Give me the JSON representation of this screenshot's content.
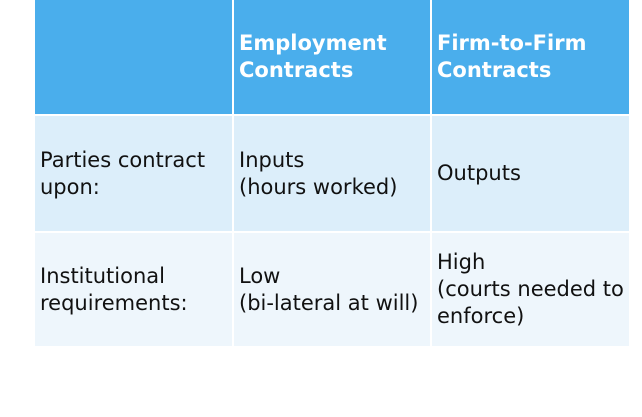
{
  "table": {
    "header": [
      "",
      "Employment Contracts",
      "Firm-to-Firm Contracts"
    ],
    "rows": [
      {
        "label": "Parties contract upon:",
        "employment": "Inputs\n(hours worked)",
        "firm": "Outputs"
      },
      {
        "label": "Institutional requirements:",
        "employment": "Low\n(bi-lateral at will)",
        "firm": "High\n(courts needed to enforce)"
      }
    ]
  },
  "colors": {
    "header_bg": "#4aaeec",
    "row1_bg": "#dceefa",
    "row2_bg": "#eef6fc"
  }
}
